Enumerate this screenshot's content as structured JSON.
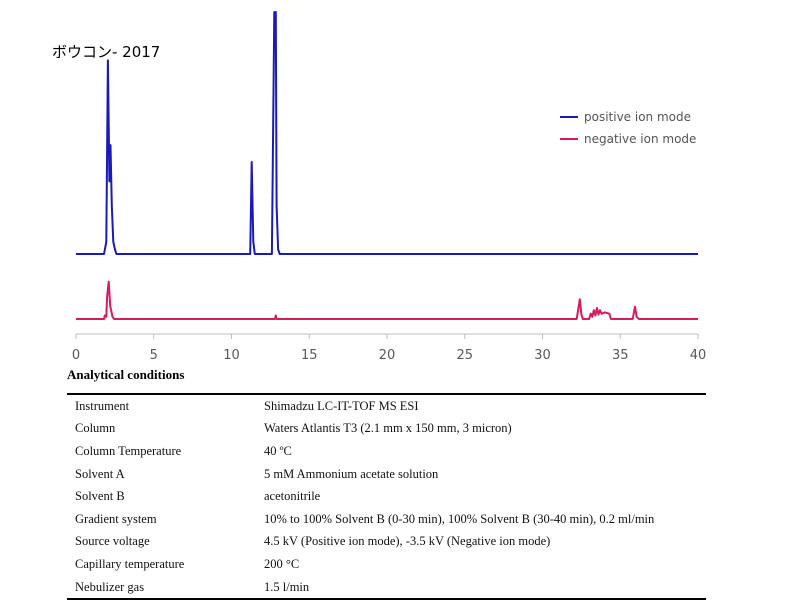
{
  "title": "ボウコン- 2017",
  "chart_data": {
    "type": "line",
    "xlim": [
      0,
      40
    ],
    "x_ticks": [
      "0",
      "5",
      "10",
      "15",
      "20",
      "25",
      "30",
      "35",
      "40"
    ],
    "series": [
      {
        "name": "positive ion mode",
        "color": "#1a1ab8",
        "baseline": 0,
        "x": [
          0,
          1.8,
          1.95,
          2.05,
          2.15,
          2.22,
          2.3,
          2.4,
          2.5,
          2.6,
          11.2,
          11.3,
          11.4,
          11.5,
          12.6,
          12.75,
          12.8,
          12.85,
          12.9,
          13.0,
          13.1,
          40
        ],
        "y": [
          0,
          0,
          0.05,
          0.8,
          0.3,
          0.45,
          0.2,
          0.05,
          0.02,
          0,
          0,
          0.38,
          0.05,
          0,
          0,
          1.0,
          0.95,
          1.0,
          0.2,
          0.02,
          0,
          0
        ]
      },
      {
        "name": "negative ion mode",
        "color": "#d81b60",
        "baseline": 0,
        "x": [
          0,
          1.8,
          1.85,
          1.95,
          2.0,
          2.1,
          2.2,
          2.35,
          2.45,
          12.8,
          12.85,
          12.9,
          32.2,
          32.4,
          32.5,
          32.6,
          33.0,
          33.1,
          33.2,
          33.3,
          33.4,
          33.5,
          33.6,
          33.7,
          33.8,
          34.0,
          34.3,
          34.4,
          35.8,
          35.95,
          36.05,
          36.2,
          40
        ],
        "y": [
          0,
          0,
          0.08,
          0.05,
          0.5,
          0.85,
          0.3,
          0.05,
          0,
          0,
          0.08,
          0,
          0,
          0.45,
          0.1,
          0,
          0,
          0.12,
          0.05,
          0.2,
          0.08,
          0.25,
          0.1,
          0.2,
          0.12,
          0.15,
          0.12,
          0,
          0,
          0.28,
          0.05,
          0,
          0
        ]
      }
    ],
    "legend_position": "top-right",
    "grid": false
  },
  "conditions": {
    "title": "Analytical conditions",
    "rows": [
      {
        "param": "Instrument",
        "value": "Shimadzu LC-IT-TOF MS ESI"
      },
      {
        "param": "Column",
        "value": "Waters Atlantis T3 (2.1 mm x 150 mm, 3 micron)"
      },
      {
        "param": "Column Temperature",
        "value": "40 ºC"
      },
      {
        "param": "Solvent A",
        "value": "5 mM Ammonium acetate solution"
      },
      {
        "param": "Solvent B",
        "value": "acetonitrile"
      },
      {
        "param": "Gradient system",
        "value": "10% to 100% Solvent B (0-30 min), 100% Solvent B (30-40 min), 0.2 ml/min"
      },
      {
        "param": "Source voltage",
        "value": "4.5 kV (Positive ion mode), -3.5 kV (Negative ion mode)"
      },
      {
        "param": "Capillary temperature",
        "value": "200 °C"
      },
      {
        "param": "Nebulizer gas",
        "value": "1.5 l/min"
      }
    ]
  }
}
